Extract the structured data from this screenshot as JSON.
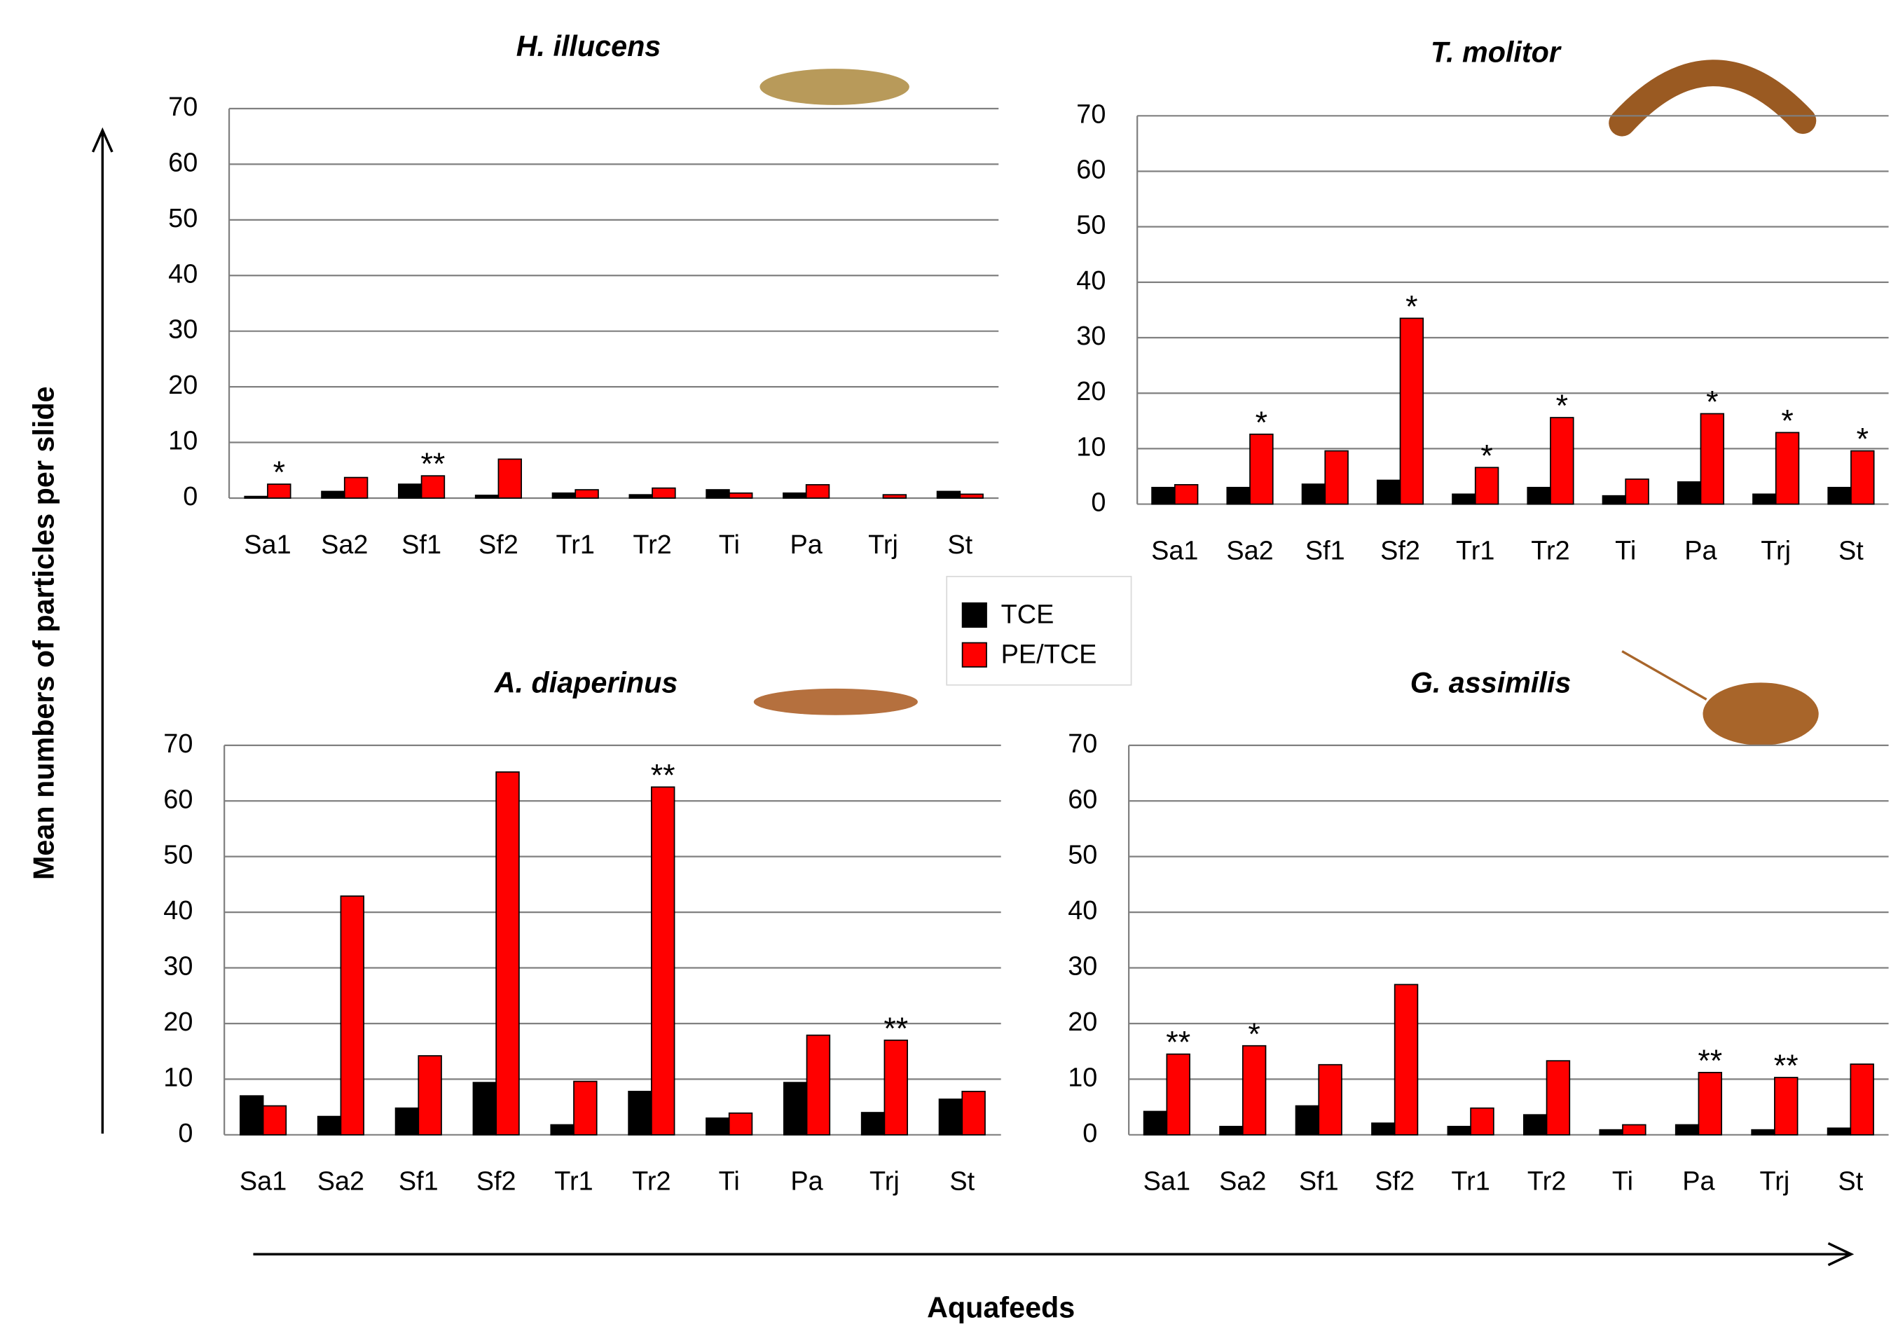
{
  "chart_data": [
    {
      "type": "bar",
      "title": "H. illucens",
      "categories": [
        "Sa1",
        "Sa2",
        "Sf1",
        "Sf2",
        "Tr1",
        "Tr2",
        "Ti",
        "Pa",
        "Trj",
        "St"
      ],
      "series": [
        {
          "name": "TCE",
          "color": "#000000",
          "values": [
            0.3,
            1.2,
            2.5,
            0.5,
            0.9,
            0.6,
            1.5,
            0.9,
            0,
            1.2
          ]
        },
        {
          "name": "PE/TCE",
          "color": "#ff0000",
          "values": [
            2.5,
            3.7,
            4.0,
            7.0,
            1.5,
            1.8,
            0.9,
            2.4,
            0.6,
            0.7
          ]
        }
      ],
      "significance": [
        "*",
        null,
        "**",
        null,
        null,
        null,
        null,
        null,
        null,
        null
      ],
      "ylim": [
        0,
        70
      ],
      "yticks": [
        0,
        10,
        20,
        30,
        40,
        50,
        60,
        70
      ],
      "grid": true
    },
    {
      "type": "bar",
      "title": "T. molitor",
      "categories": [
        "Sa1",
        "Sa2",
        "Sf1",
        "Sf2",
        "Tr1",
        "Tr2",
        "Ti",
        "Pa",
        "Trj",
        "St"
      ],
      "series": [
        {
          "name": "TCE",
          "color": "#000000",
          "values": [
            3.0,
            3.0,
            3.6,
            4.3,
            1.8,
            3.0,
            1.5,
            4.0,
            1.8,
            3.0
          ]
        },
        {
          "name": "PE/TCE",
          "color": "#ff0000",
          "values": [
            3.5,
            12.6,
            9.6,
            33.5,
            6.6,
            15.6,
            4.5,
            16.3,
            12.9,
            9.6
          ]
        }
      ],
      "significance": [
        null,
        "*",
        null,
        "*",
        "*",
        "*",
        null,
        "*",
        "*",
        "*"
      ],
      "ylim": [
        0,
        70
      ],
      "yticks": [
        0,
        10,
        20,
        30,
        40,
        50,
        60,
        70
      ],
      "grid": true
    },
    {
      "type": "bar",
      "title": "A. diaperinus",
      "categories": [
        "Sa1",
        "Sa2",
        "Sf1",
        "Sf2",
        "Tr1",
        "Tr2",
        "Ti",
        "Pa",
        "Trj",
        "St"
      ],
      "series": [
        {
          "name": "TCE",
          "color": "#000000",
          "values": [
            7.0,
            3.3,
            4.8,
            9.4,
            1.8,
            7.8,
            3.0,
            9.4,
            4.0,
            6.4
          ]
        },
        {
          "name": "PE/TCE",
          "color": "#ff0000",
          "values": [
            5.2,
            42.9,
            14.2,
            65.2,
            9.6,
            62.5,
            3.9,
            17.9,
            17.0,
            7.8
          ]
        }
      ],
      "significance": [
        null,
        null,
        null,
        null,
        null,
        "**",
        null,
        null,
        "**",
        null
      ],
      "ylim": [
        0,
        70
      ],
      "yticks": [
        0,
        10,
        20,
        30,
        40,
        50,
        60,
        70
      ],
      "grid": true
    },
    {
      "type": "bar",
      "title": "G. assimilis",
      "categories": [
        "Sa1",
        "Sa2",
        "Sf1",
        "Sf2",
        "Tr1",
        "Tr2",
        "Ti",
        "Pa",
        "Trj",
        "St"
      ],
      "series": [
        {
          "name": "TCE",
          "color": "#000000",
          "values": [
            4.2,
            1.5,
            5.2,
            2.1,
            1.5,
            3.6,
            0.9,
            1.8,
            0.9,
            1.2
          ]
        },
        {
          "name": "PE/TCE",
          "color": "#ff0000",
          "values": [
            14.5,
            16.0,
            12.6,
            27.0,
            4.8,
            13.3,
            1.8,
            11.2,
            10.3,
            12.7
          ]
        }
      ],
      "significance": [
        "**",
        "*",
        null,
        null,
        null,
        null,
        null,
        "**",
        "**",
        null
      ],
      "ylim": [
        0,
        70
      ],
      "yticks": [
        0,
        10,
        20,
        30,
        40,
        50,
        60,
        70
      ],
      "grid": true
    }
  ],
  "y_axis_label": "Mean numbers of particles per  slide",
  "x_axis_label": "Aquafeeds"
}
